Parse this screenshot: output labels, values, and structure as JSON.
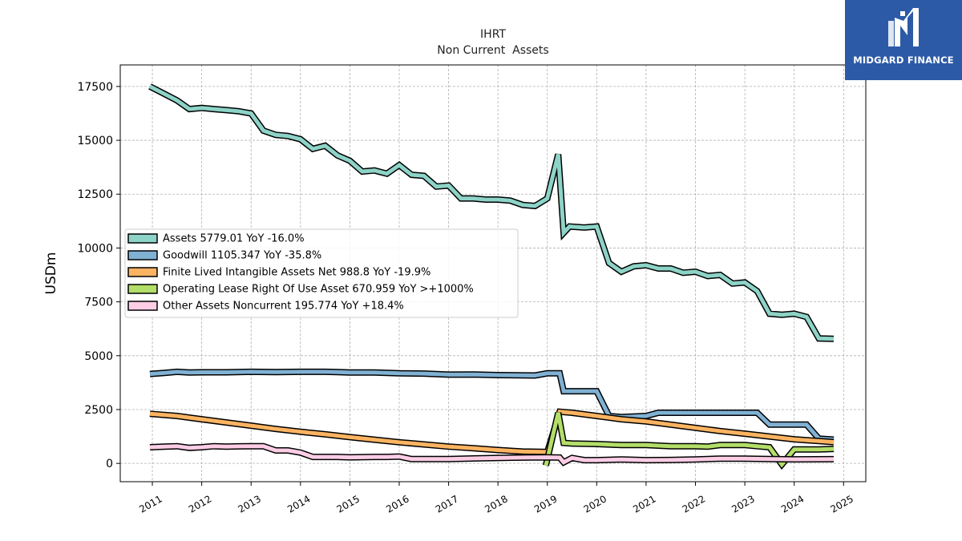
{
  "colors": {
    "assets": "#8dd3c7",
    "goodwill": "#80b1d3",
    "finite_intangible": "#fdb462",
    "lease": "#b3de69",
    "other": "#fccde5",
    "logo_bg": "#2c5aa6"
  },
  "logo": {
    "name": "MIDGARD FINANCE",
    "icon": "midgard-logo-mark"
  },
  "chart_data": {
    "type": "line",
    "title": "IHRT",
    "subtitle": "Non Current  Assets",
    "ylabel": "USDm",
    "xlabel": "",
    "xlim": [
      2010.35,
      2025.45
    ],
    "ylim": [
      -850,
      18500
    ],
    "x_ticks": [
      2011,
      2012,
      2013,
      2014,
      2015,
      2016,
      2017,
      2018,
      2019,
      2020,
      2021,
      2022,
      2023,
      2024,
      2025
    ],
    "x_tick_labels": [
      "2011",
      "2012",
      "2013",
      "2014",
      "2015",
      "2016",
      "2017",
      "2018",
      "2019",
      "2020",
      "2021",
      "2022",
      "2023",
      "2024",
      "2025"
    ],
    "y_ticks": [
      0,
      2500,
      5000,
      7500,
      10000,
      12500,
      15000,
      17500
    ],
    "y_tick_labels": [
      "0",
      "2500",
      "5000",
      "7500",
      "10000",
      "12500",
      "15000",
      "17500"
    ],
    "grid": true,
    "legend_position": "center-left",
    "series": [
      {
        "name": "Assets",
        "legend": "Assets  5779.01 YoY -16.0%",
        "color_key": "assets",
        "points": [
          [
            2010.95,
            17500
          ],
          [
            2011.25,
            17150
          ],
          [
            2011.5,
            16850
          ],
          [
            2011.75,
            16450
          ],
          [
            2012.0,
            16500
          ],
          [
            2012.25,
            16450
          ],
          [
            2012.5,
            16400
          ],
          [
            2012.75,
            16350
          ],
          [
            2013.0,
            16250
          ],
          [
            2013.25,
            15450
          ],
          [
            2013.5,
            15250
          ],
          [
            2013.75,
            15200
          ],
          [
            2014.0,
            15050
          ],
          [
            2014.25,
            14600
          ],
          [
            2014.5,
            14750
          ],
          [
            2014.75,
            14300
          ],
          [
            2015.0,
            14050
          ],
          [
            2015.25,
            13550
          ],
          [
            2015.5,
            13600
          ],
          [
            2015.75,
            13450
          ],
          [
            2016.0,
            13850
          ],
          [
            2016.25,
            13400
          ],
          [
            2016.5,
            13350
          ],
          [
            2016.75,
            12850
          ],
          [
            2017.0,
            12900
          ],
          [
            2017.25,
            12300
          ],
          [
            2017.5,
            12300
          ],
          [
            2017.75,
            12250
          ],
          [
            2018.0,
            12250
          ],
          [
            2018.25,
            12200
          ],
          [
            2018.5,
            12000
          ],
          [
            2018.75,
            11950
          ],
          [
            2019.0,
            12300
          ],
          [
            2019.22,
            14350
          ],
          [
            2019.33,
            10700
          ],
          [
            2019.45,
            11000
          ],
          [
            2019.75,
            10950
          ],
          [
            2020.0,
            11000
          ],
          [
            2020.25,
            9300
          ],
          [
            2020.5,
            8900
          ],
          [
            2020.75,
            9150
          ],
          [
            2021.0,
            9200
          ],
          [
            2021.25,
            9050
          ],
          [
            2021.5,
            9050
          ],
          [
            2021.75,
            8850
          ],
          [
            2022.0,
            8900
          ],
          [
            2022.25,
            8700
          ],
          [
            2022.5,
            8750
          ],
          [
            2022.75,
            8350
          ],
          [
            2023.0,
            8400
          ],
          [
            2023.25,
            8000
          ],
          [
            2023.5,
            6950
          ],
          [
            2023.75,
            6900
          ],
          [
            2024.0,
            6950
          ],
          [
            2024.25,
            6800
          ],
          [
            2024.5,
            5800
          ],
          [
            2024.8,
            5780
          ]
        ]
      },
      {
        "name": "Goodwill",
        "legend": "Goodwill  1105.347 YoY -35.8%",
        "color_key": "goodwill",
        "points": [
          [
            2010.95,
            4150
          ],
          [
            2011.25,
            4200
          ],
          [
            2011.5,
            4250
          ],
          [
            2011.75,
            4220
          ],
          [
            2012.0,
            4230
          ],
          [
            2012.5,
            4230
          ],
          [
            2013.0,
            4250
          ],
          [
            2013.5,
            4240
          ],
          [
            2014.0,
            4250
          ],
          [
            2014.5,
            4250
          ],
          [
            2014.75,
            4240
          ],
          [
            2015.0,
            4220
          ],
          [
            2015.5,
            4220
          ],
          [
            2016.0,
            4180
          ],
          [
            2016.5,
            4170
          ],
          [
            2017.0,
            4120
          ],
          [
            2017.5,
            4130
          ],
          [
            2018.0,
            4100
          ],
          [
            2018.75,
            4080
          ],
          [
            2019.0,
            4180
          ],
          [
            2019.25,
            4180
          ],
          [
            2019.33,
            3350
          ],
          [
            2019.75,
            3350
          ],
          [
            2020.0,
            3350
          ],
          [
            2020.25,
            2200
          ],
          [
            2020.5,
            2150
          ],
          [
            2021.0,
            2200
          ],
          [
            2021.25,
            2350
          ],
          [
            2021.5,
            2350
          ],
          [
            2022.0,
            2350
          ],
          [
            2022.5,
            2350
          ],
          [
            2023.0,
            2350
          ],
          [
            2023.25,
            2350
          ],
          [
            2023.5,
            1800
          ],
          [
            2024.0,
            1800
          ],
          [
            2024.25,
            1800
          ],
          [
            2024.5,
            1150
          ],
          [
            2024.8,
            1105
          ]
        ]
      },
      {
        "name": "Finite Lived Intangible Assets Net",
        "legend": "Finite Lived Intangible Assets Net  988.8 YoY -19.9%",
        "color_key": "finite_intangible",
        "points": [
          [
            2010.95,
            2300
          ],
          [
            2011.5,
            2200
          ],
          [
            2012.0,
            2050
          ],
          [
            2012.5,
            1900
          ],
          [
            2013.0,
            1750
          ],
          [
            2013.5,
            1600
          ],
          [
            2014.0,
            1470
          ],
          [
            2014.5,
            1350
          ],
          [
            2015.0,
            1220
          ],
          [
            2015.5,
            1100
          ],
          [
            2016.0,
            980
          ],
          [
            2016.5,
            880
          ],
          [
            2017.0,
            780
          ],
          [
            2017.5,
            700
          ],
          [
            2018.0,
            620
          ],
          [
            2018.5,
            550
          ],
          [
            2019.0,
            530
          ],
          [
            2019.25,
            2400
          ],
          [
            2019.5,
            2350
          ],
          [
            2020.0,
            2200
          ],
          [
            2020.5,
            2050
          ],
          [
            2021.0,
            1950
          ],
          [
            2021.5,
            1800
          ],
          [
            2022.0,
            1650
          ],
          [
            2022.5,
            1500
          ],
          [
            2023.0,
            1380
          ],
          [
            2023.5,
            1250
          ],
          [
            2024.0,
            1120
          ],
          [
            2024.8,
            989
          ]
        ]
      },
      {
        "name": "Operating Lease Right Of Use Asset",
        "legend": "Operating Lease Right Of Use Asset  670.959 YoY >+1000%",
        "color_key": "lease",
        "points": [
          [
            2018.97,
            -100
          ],
          [
            2019.22,
            2350
          ],
          [
            2019.33,
            950
          ],
          [
            2019.5,
            920
          ],
          [
            2020.0,
            900
          ],
          [
            2020.5,
            850
          ],
          [
            2021.0,
            850
          ],
          [
            2021.5,
            800
          ],
          [
            2022.0,
            800
          ],
          [
            2022.25,
            780
          ],
          [
            2022.5,
            850
          ],
          [
            2023.0,
            850
          ],
          [
            2023.25,
            800
          ],
          [
            2023.5,
            750
          ],
          [
            2023.75,
            -50
          ],
          [
            2024.0,
            650
          ],
          [
            2024.5,
            650
          ],
          [
            2024.8,
            671
          ]
        ]
      },
      {
        "name": "Other Assets Noncurrent",
        "legend": "Other Assets Noncurrent  195.774 YoY +18.4%",
        "color_key": "other",
        "points": [
          [
            2010.95,
            750
          ],
          [
            2011.25,
            780
          ],
          [
            2011.5,
            800
          ],
          [
            2011.75,
            720
          ],
          [
            2012.0,
            750
          ],
          [
            2012.25,
            800
          ],
          [
            2012.5,
            780
          ],
          [
            2012.75,
            790
          ],
          [
            2013.0,
            800
          ],
          [
            2013.25,
            800
          ],
          [
            2013.5,
            600
          ],
          [
            2013.75,
            600
          ],
          [
            2014.0,
            500
          ],
          [
            2014.25,
            300
          ],
          [
            2014.5,
            300
          ],
          [
            2014.75,
            300
          ],
          [
            2015.0,
            280
          ],
          [
            2015.5,
            300
          ],
          [
            2015.75,
            300
          ],
          [
            2016.0,
            320
          ],
          [
            2016.25,
            200
          ],
          [
            2016.5,
            200
          ],
          [
            2017.0,
            200
          ],
          [
            2017.5,
            230
          ],
          [
            2018.0,
            250
          ],
          [
            2018.5,
            270
          ],
          [
            2019.0,
            280
          ],
          [
            2019.25,
            270
          ],
          [
            2019.33,
            50
          ],
          [
            2019.5,
            250
          ],
          [
            2019.75,
            150
          ],
          [
            2020.0,
            150
          ],
          [
            2020.5,
            180
          ],
          [
            2021.0,
            150
          ],
          [
            2021.5,
            160
          ],
          [
            2022.0,
            180
          ],
          [
            2022.5,
            220
          ],
          [
            2023.0,
            220
          ],
          [
            2023.5,
            200
          ],
          [
            2024.0,
            190
          ],
          [
            2024.8,
            196
          ]
        ]
      }
    ]
  }
}
